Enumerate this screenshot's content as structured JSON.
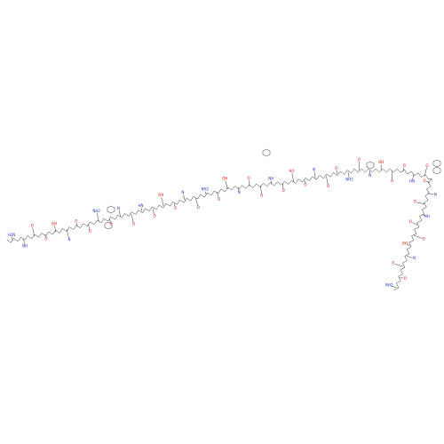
{
  "atom_labels": [
    "H2N",
    "NH",
    "O",
    "O",
    "OH",
    "N",
    "O",
    "O",
    "NH2",
    "O",
    "N",
    "O",
    "HN",
    "O",
    "OH",
    "O",
    "N",
    "O",
    "NH2",
    "O",
    "OH",
    "N",
    "O",
    "O",
    "NH",
    "O",
    "HO",
    "O",
    "N",
    "O",
    "O",
    "NH2",
    "O",
    "N",
    "OH",
    "O",
    "O",
    "HN",
    "O",
    "O",
    "N",
    "O",
    "NH",
    "O",
    "O",
    "OH",
    "N",
    "O",
    "O",
    "NH2"
  ]
}
